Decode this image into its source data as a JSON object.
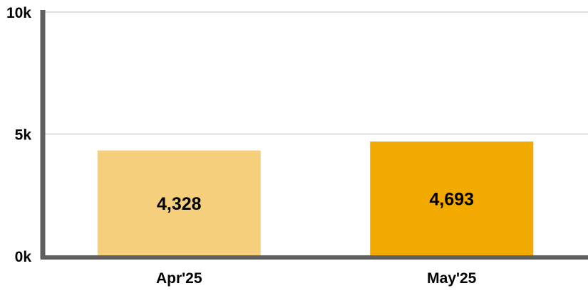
{
  "chart_data": {
    "type": "bar",
    "title": "",
    "xlabel": "",
    "ylabel": "",
    "categories": [
      "Apr'25",
      "May'25"
    ],
    "values": [
      4328,
      4693
    ],
    "value_labels": [
      "4,328",
      "4,693"
    ],
    "ylim": [
      0,
      10000
    ],
    "yticks": [
      0,
      5000,
      10000
    ],
    "ytick_labels": [
      "0k",
      "5k",
      "10k"
    ],
    "grid": true,
    "legend": "none",
    "colors": {
      "bars": [
        "#f6cf7d",
        "#f2a900"
      ],
      "axis": "#606060",
      "grid": "#dddddd",
      "text": "#000000"
    }
  }
}
